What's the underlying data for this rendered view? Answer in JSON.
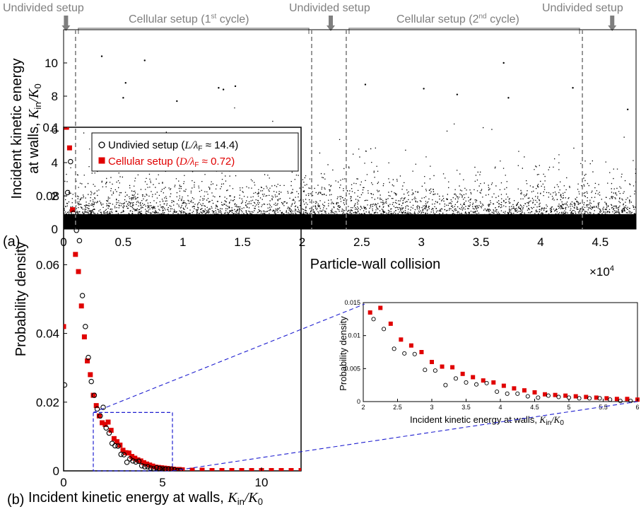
{
  "chart_data": [
    {
      "panel": "(a)",
      "type": "scatter",
      "xlabel": "Particle-wall collision",
      "x_multiplier": "×10",
      "x_multiplier_exp": "4",
      "ylabel_line1": "Incident kinetic energy",
      "ylabel_line2": "at walls, ",
      "ylabel_symbol": "K",
      "ylabel_sub": "in",
      "ylabel_den": "/K",
      "ylabel_den_sub": "0",
      "xlim": [
        0,
        4.8
      ],
      "ylim": [
        0,
        12
      ],
      "xticks": [
        "0",
        "0.5",
        "1",
        "1.5",
        "2",
        "2.5",
        "3",
        "3.5",
        "4",
        "4.5"
      ],
      "yticks": [
        "0",
        "2",
        "4",
        "6",
        "8",
        "10"
      ],
      "grid": false,
      "annotations": {
        "undivided": "Undivided setup",
        "cellular_1_pre": "Cellular setup (1",
        "cellular_1_sup": "st",
        "cellular_1_post": " cycle)",
        "cellular_2_pre": "Cellular setup (2",
        "cellular_2_sup": "nd",
        "cellular_2_post": " cycle)"
      },
      "phase_boundaries_x": [
        0.1,
        2.08,
        2.37,
        4.35
      ],
      "arrows_x": [
        0.02,
        2.24,
        4.6
      ],
      "brackets": [
        [
          0.1,
          2.08
        ],
        [
          2.37,
          4.35
        ]
      ],
      "notable_points": [
        {
          "x": 0.32,
          "y": 10.4
        },
        {
          "x": 0.68,
          "y": 10.15
        },
        {
          "x": 3.69,
          "y": 10.0
        },
        {
          "x": 0.52,
          "y": 8.8
        },
        {
          "x": 1.3,
          "y": 8.5
        },
        {
          "x": 1.44,
          "y": 8.6
        },
        {
          "x": 3.02,
          "y": 8.45
        },
        {
          "x": 4.27,
          "y": 8.5
        },
        {
          "x": 2.53,
          "y": 8.7
        },
        {
          "x": 0.5,
          "y": 7.9
        },
        {
          "x": 1.34,
          "y": 8.4
        },
        {
          "x": 0.95,
          "y": 7.7
        },
        {
          "x": 3.73,
          "y": 7.9
        },
        {
          "x": 3.3,
          "y": 8.1
        },
        {
          "x": 4.73,
          "y": 7.2
        }
      ]
    },
    {
      "panel": "(b)",
      "type": "scatter",
      "ylabel": "Probability density",
      "xlabel": "Incident kinetic energy at walls, ",
      "xlabel_symbol": "K",
      "xlabel_sub": "in",
      "xlabel_den": "/K",
      "xlabel_den_sub": "0",
      "xlim": [
        0,
        12
      ],
      "ylim": [
        0,
        0.1
      ],
      "xticks": [
        "0",
        "5",
        "10"
      ],
      "yticks": [
        "0",
        "0.02",
        "0.04",
        "0.06",
        "0.08",
        "0.1"
      ],
      "legend_position": "top-right",
      "zoom_box": {
        "x": [
          1.5,
          5.5
        ],
        "y": [
          0,
          0.017
        ]
      },
      "series": [
        {
          "name": "Undivied setup (L/λF ≈ 14.4)",
          "legend_pre": "Undivied setup (",
          "legend_math": "L/λ",
          "legend_sub": "F",
          "legend_post": " ≈ 14.4)",
          "marker": "open-circle",
          "color": "#000000",
          "x": [
            0.05,
            0.2,
            0.35,
            0.5,
            0.65,
            0.8,
            0.95,
            1.1,
            1.25,
            1.4,
            1.55,
            1.7,
            1.85,
            2.0,
            2.15,
            2.3,
            2.45,
            2.6,
            2.75,
            2.9,
            3.05,
            3.2,
            3.35,
            3.5,
            3.65,
            3.8,
            3.95,
            4.1,
            4.25,
            4.4,
            4.55,
            4.7,
            4.85,
            5.0,
            5.15,
            5.3,
            5.45,
            5.6,
            5.75,
            5.9
          ],
          "y": [
            0.025,
            0.081,
            0.09,
            0.075,
            0.07,
            0.067,
            0.051,
            0.042,
            0.033,
            0.026,
            0.022,
            0.018,
            0.016,
            0.0185,
            0.0125,
            0.011,
            0.008,
            0.0073,
            0.0072,
            0.0048,
            0.0047,
            0.0025,
            0.0035,
            0.0029,
            0.0026,
            0.0028,
            0.0015,
            0.0012,
            0.0012,
            0.0008,
            0.0006,
            0.0009,
            0.0007,
            0.0006,
            0.0005,
            0.0005,
            0.0005,
            0.0003,
            0.0001,
            0.0001
          ]
        },
        {
          "name": "Cellular setup (D/λF ≈ 0.72)",
          "legend_pre": "Cellular setup (",
          "legend_math": "D/λ",
          "legend_sub": "F",
          "legend_post": " ≈ 0.72)",
          "marker": "filled-square",
          "color": "#e00000",
          "x": [
            0.0,
            0.15,
            0.3,
            0.45,
            0.6,
            0.75,
            0.9,
            1.05,
            1.2,
            1.35,
            1.5,
            1.65,
            1.8,
            1.95,
            2.1,
            2.25,
            2.4,
            2.55,
            2.7,
            2.85,
            3.0,
            3.15,
            3.3,
            3.45,
            3.6,
            3.75,
            3.9,
            4.05,
            4.2,
            4.35,
            4.5,
            4.65,
            4.8,
            4.95,
            5.1,
            5.25,
            5.4,
            5.55,
            5.7,
            5.85,
            6.0,
            6.5,
            7.0,
            7.5,
            8.0,
            8.5,
            9.0,
            9.5,
            10.0,
            10.5,
            11.0,
            11.5,
            12.0
          ],
          "y": [
            0.042,
            0.1,
            0.094,
            0.076,
            0.063,
            0.058,
            0.048,
            0.039,
            0.032,
            0.028,
            0.022,
            0.019,
            0.016,
            0.014,
            0.0135,
            0.0142,
            0.0118,
            0.0094,
            0.0085,
            0.0075,
            0.006,
            0.0053,
            0.0052,
            0.0042,
            0.0037,
            0.0032,
            0.0029,
            0.0024,
            0.002,
            0.0017,
            0.0014,
            0.0011,
            0.001,
            0.0009,
            0.0008,
            0.0007,
            0.0006,
            0.0005,
            0.0004,
            0.0004,
            0.0003,
            0.0002,
            0.0002,
            0.0001,
            0.0001,
            0.0001,
            0.0001,
            0.0001,
            0.0001,
            0.0001,
            0.0001,
            0.0001,
            0.0001
          ]
        }
      ]
    },
    {
      "panel": "inset",
      "type": "scatter",
      "ylabel": "Probability density",
      "xlabel": "Incident kinetic energy at walls, ",
      "xlabel_symbol": "K",
      "xlabel_sub": "in",
      "xlabel_den": "/K",
      "xlabel_den_sub": "0",
      "xlim": [
        2,
        6
      ],
      "ylim": [
        0,
        0.015
      ],
      "xticks": [
        "2",
        "2.5",
        "3",
        "3.5",
        "4",
        "4.5",
        "5",
        "5.5",
        "6"
      ],
      "yticks": [
        "0",
        "0.005",
        "0.01",
        "0.015"
      ],
      "series": [
        {
          "name": "Undivied setup",
          "marker": "open-circle",
          "color": "#000000",
          "x": [
            2.15,
            2.3,
            2.45,
            2.6,
            2.75,
            2.9,
            3.05,
            3.2,
            3.35,
            3.5,
            3.65,
            3.8,
            3.95,
            4.1,
            4.25,
            4.4,
            4.55,
            4.7,
            4.85,
            5.0,
            5.15,
            5.3,
            5.45,
            5.6,
            5.75,
            5.9
          ],
          "y": [
            0.0125,
            0.011,
            0.008,
            0.0073,
            0.0072,
            0.0048,
            0.0047,
            0.0025,
            0.0035,
            0.0029,
            0.0026,
            0.0028,
            0.0015,
            0.0012,
            0.0012,
            0.0008,
            0.0006,
            0.0009,
            0.0007,
            0.0006,
            0.0005,
            0.0005,
            0.0005,
            0.0003,
            0.0001,
            0.0001
          ]
        },
        {
          "name": "Cellular setup",
          "marker": "filled-square",
          "color": "#e00000",
          "x": [
            2.1,
            2.25,
            2.4,
            2.55,
            2.7,
            2.85,
            3.0,
            3.15,
            3.3,
            3.45,
            3.6,
            3.75,
            3.9,
            4.05,
            4.2,
            4.35,
            4.5,
            4.65,
            4.8,
            4.95,
            5.1,
            5.25,
            5.4,
            5.55,
            5.7,
            5.85,
            6.0
          ],
          "y": [
            0.0135,
            0.0142,
            0.0118,
            0.0094,
            0.0085,
            0.0075,
            0.006,
            0.0053,
            0.0052,
            0.0042,
            0.0037,
            0.0032,
            0.0029,
            0.0024,
            0.002,
            0.0017,
            0.0014,
            0.0011,
            0.001,
            0.0009,
            0.0008,
            0.0007,
            0.0006,
            0.0005,
            0.0004,
            0.0004,
            0.0003
          ]
        }
      ]
    }
  ]
}
